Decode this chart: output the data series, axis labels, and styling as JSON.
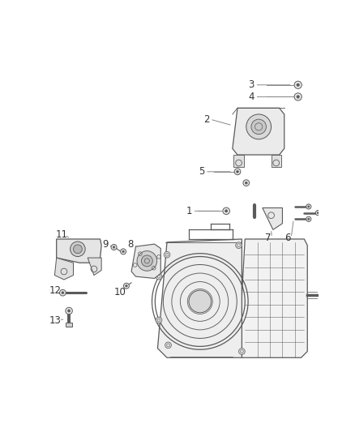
{
  "background_color": "#ffffff",
  "line_color": "#5a5a5a",
  "label_color": "#333333",
  "thin_line": 0.6,
  "medium_line": 0.9,
  "thick_line": 1.3,
  "label_fontsize": 8.5,
  "leader_color": "#888888"
}
